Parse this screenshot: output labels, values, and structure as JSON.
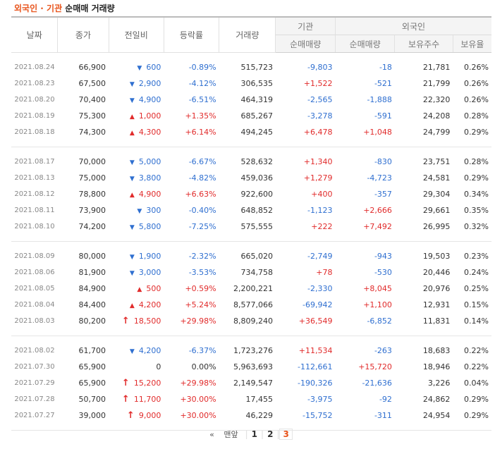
{
  "title": {
    "highlight": "외국인 · 기관",
    "rest": " 순매매 거래량"
  },
  "headers": {
    "date": "날짜",
    "close": "종가",
    "change": "전일비",
    "rate": "등락률",
    "volume": "거래량",
    "inst_group": "기관",
    "inst_net": "순매매량",
    "foreign_group": "외국인",
    "foreign_net": "순매매량",
    "foreign_hold": "보유주수",
    "foreign_ratio": "보유율"
  },
  "groups": [
    {
      "rows": [
        {
          "date": "2021.08.24",
          "close": "66,900",
          "dir": "down",
          "change": "600",
          "rate": "-0.89%",
          "volume": "515,723",
          "inst": "-9,803",
          "frgn": "-18",
          "hold": "21,781",
          "ratio": "0.26%"
        },
        {
          "date": "2021.08.23",
          "close": "67,500",
          "dir": "down",
          "change": "2,900",
          "rate": "-4.12%",
          "volume": "306,535",
          "inst": "+1,522",
          "frgn": "-521",
          "hold": "21,799",
          "ratio": "0.26%"
        },
        {
          "date": "2021.08.20",
          "close": "70,400",
          "dir": "down",
          "change": "4,900",
          "rate": "-6.51%",
          "volume": "464,319",
          "inst": "-2,565",
          "frgn": "-1,888",
          "hold": "22,320",
          "ratio": "0.26%"
        },
        {
          "date": "2021.08.19",
          "close": "75,300",
          "dir": "up",
          "change": "1,000",
          "rate": "+1.35%",
          "volume": "685,267",
          "inst": "-3,278",
          "frgn": "-591",
          "hold": "24,208",
          "ratio": "0.28%"
        },
        {
          "date": "2021.08.18",
          "close": "74,300",
          "dir": "up",
          "change": "4,300",
          "rate": "+6.14%",
          "volume": "494,245",
          "inst": "+6,478",
          "frgn": "+1,048",
          "hold": "24,799",
          "ratio": "0.29%"
        }
      ]
    },
    {
      "rows": [
        {
          "date": "2021.08.17",
          "close": "70,000",
          "dir": "down",
          "change": "5,000",
          "rate": "-6.67%",
          "volume": "528,632",
          "inst": "+1,340",
          "frgn": "-830",
          "hold": "23,751",
          "ratio": "0.28%"
        },
        {
          "date": "2021.08.13",
          "close": "75,000",
          "dir": "down",
          "change": "3,800",
          "rate": "-4.82%",
          "volume": "459,036",
          "inst": "+1,279",
          "frgn": "-4,723",
          "hold": "24,581",
          "ratio": "0.29%"
        },
        {
          "date": "2021.08.12",
          "close": "78,800",
          "dir": "up",
          "change": "4,900",
          "rate": "+6.63%",
          "volume": "922,600",
          "inst": "+400",
          "frgn": "-357",
          "hold": "29,304",
          "ratio": "0.34%"
        },
        {
          "date": "2021.08.11",
          "close": "73,900",
          "dir": "down",
          "change": "300",
          "rate": "-0.40%",
          "volume": "648,852",
          "inst": "-1,123",
          "frgn": "+2,666",
          "hold": "29,661",
          "ratio": "0.35%"
        },
        {
          "date": "2021.08.10",
          "close": "74,200",
          "dir": "down",
          "change": "5,800",
          "rate": "-7.25%",
          "volume": "575,555",
          "inst": "+222",
          "frgn": "+7,492",
          "hold": "26,995",
          "ratio": "0.32%"
        }
      ]
    },
    {
      "rows": [
        {
          "date": "2021.08.09",
          "close": "80,000",
          "dir": "down",
          "change": "1,900",
          "rate": "-2.32%",
          "volume": "665,020",
          "inst": "-2,749",
          "frgn": "-943",
          "hold": "19,503",
          "ratio": "0.23%"
        },
        {
          "date": "2021.08.06",
          "close": "81,900",
          "dir": "down",
          "change": "3,000",
          "rate": "-3.53%",
          "volume": "734,758",
          "inst": "+78",
          "frgn": "-530",
          "hold": "20,446",
          "ratio": "0.24%"
        },
        {
          "date": "2021.08.05",
          "close": "84,900",
          "dir": "up",
          "change": "500",
          "rate": "+0.59%",
          "volume": "2,200,221",
          "inst": "-2,330",
          "frgn": "+8,045",
          "hold": "20,976",
          "ratio": "0.25%"
        },
        {
          "date": "2021.08.04",
          "close": "84,400",
          "dir": "up",
          "change": "4,200",
          "rate": "+5.24%",
          "volume": "8,577,066",
          "inst": "-69,942",
          "frgn": "+1,100",
          "hold": "12,931",
          "ratio": "0.15%"
        },
        {
          "date": "2021.08.03",
          "close": "80,200",
          "dir": "limitup",
          "change": "18,500",
          "rate": "+29.98%",
          "volume": "8,809,240",
          "inst": "+36,549",
          "frgn": "-6,852",
          "hold": "11,831",
          "ratio": "0.14%"
        }
      ]
    },
    {
      "rows": [
        {
          "date": "2021.08.02",
          "close": "61,700",
          "dir": "down",
          "change": "4,200",
          "rate": "-6.37%",
          "volume": "1,723,276",
          "inst": "+11,534",
          "frgn": "-263",
          "hold": "18,683",
          "ratio": "0.22%"
        },
        {
          "date": "2021.07.30",
          "close": "65,900",
          "dir": "flat",
          "change": "0",
          "rate": "0.00%",
          "volume": "5,963,693",
          "inst": "-112,661",
          "frgn": "+15,720",
          "hold": "18,946",
          "ratio": "0.22%"
        },
        {
          "date": "2021.07.29",
          "close": "65,900",
          "dir": "limitup",
          "change": "15,200",
          "rate": "+29.98%",
          "volume": "2,149,547",
          "inst": "-190,326",
          "frgn": "-21,636",
          "hold": "3,226",
          "ratio": "0.04%"
        },
        {
          "date": "2021.07.28",
          "close": "50,700",
          "dir": "limitup",
          "change": "11,700",
          "rate": "+30.00%",
          "volume": "17,455",
          "inst": "-3,975",
          "frgn": "-92",
          "hold": "24,862",
          "ratio": "0.29%"
        },
        {
          "date": "2021.07.27",
          "close": "39,000",
          "dir": "limitup",
          "change": "9,000",
          "rate": "+30.00%",
          "volume": "46,229",
          "inst": "-15,752",
          "frgn": "-311",
          "hold": "24,954",
          "ratio": "0.29%"
        }
      ]
    }
  ],
  "pagination": {
    "first_label": "맨앞",
    "first_icon": "double-chevron-left-icon",
    "pages": [
      "1",
      "2",
      "3"
    ],
    "current": "3"
  },
  "colors": {
    "up": "#e12b2b",
    "down": "#2f6fd0",
    "accent": "#e8541c"
  }
}
